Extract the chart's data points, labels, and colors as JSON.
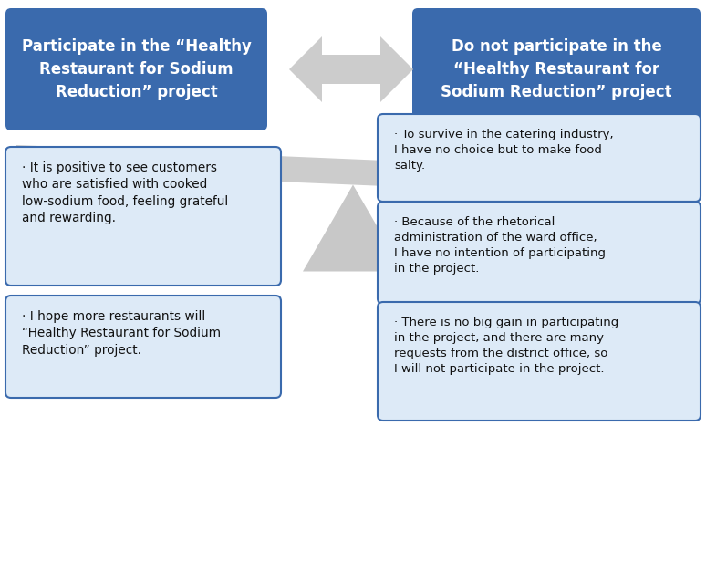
{
  "left_header": "Participate in the “Healthy\nRestaurant for Sodium\nReduction” project",
  "right_header": "Do not participate in the\n“Healthy Restaurant for\nSodium Reduction” project",
  "header_bg": "#3a6aad",
  "header_text_color": "#ffffff",
  "left_boxes": [
    "· It is positive to see customers\nwho are satisfied with cooked\nlow-sodium food, feeling grateful\nand rewarding.",
    "· I hope more restaurants will\n“Healthy Restaurant for Sodium\nReduction” project."
  ],
  "right_boxes": [
    "· To survive in the catering industry,\nI have no choice but to make food\nsalty.",
    "· Because of the rhetorical\nadministration of the ward office,\nI have no intention of participating\nin the project.",
    "· There is no big gain in participating\nin the project, and there are many\nrequests from the district office, so\nI will not participate in the project."
  ],
  "box_bg": "#ddeaf7",
  "box_border": "#3a6aad",
  "box_text_color": "#111111",
  "arrow_color": "#cccccc",
  "beam_color": "#cccccc",
  "triangle_color": "#c8c8c8",
  "background_color": "#ffffff"
}
